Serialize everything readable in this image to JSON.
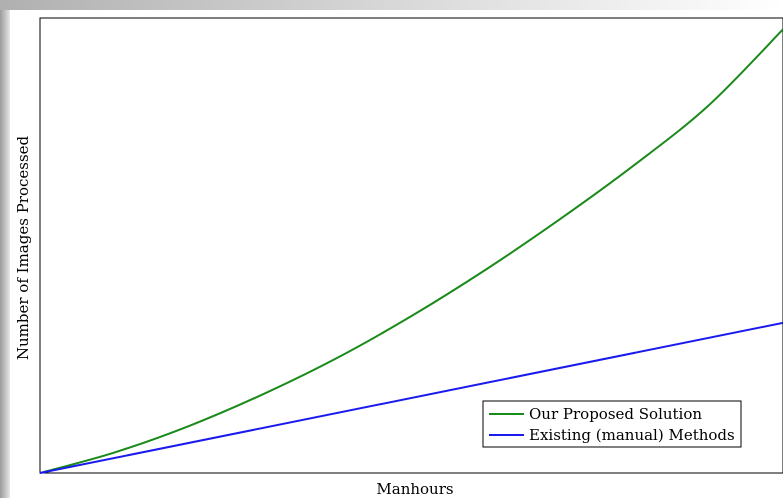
{
  "chart_data": {
    "type": "line",
    "title": "",
    "xlabel": "Manhours",
    "ylabel": "Number of Images Processed",
    "xlim": [
      0,
      1
    ],
    "ylim": [
      0,
      1
    ],
    "x_ticks_visible": false,
    "y_ticks_visible": false,
    "grid": false,
    "legend_position": "bottom-right",
    "series": [
      {
        "name": "Our Proposed Solution",
        "color": "#1a8a1a",
        "x": [
          0,
          0.1,
          0.2,
          0.3,
          0.4,
          0.5,
          0.6,
          0.7,
          0.8,
          0.9,
          1.0
        ],
        "y": [
          0,
          0.045,
          0.103,
          0.173,
          0.253,
          0.345,
          0.447,
          0.558,
          0.677,
          0.808,
          0.975
        ]
      },
      {
        "name": "Existing (manual) Methods",
        "color": "#1a1aee",
        "x": [
          0,
          1.0
        ],
        "y": [
          0,
          0.33
        ]
      }
    ]
  }
}
